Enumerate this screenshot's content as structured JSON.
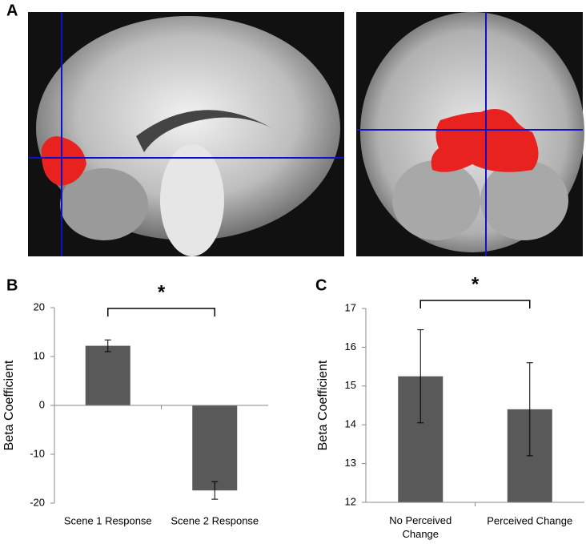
{
  "panel_labels": [
    "A",
    "B",
    "C"
  ],
  "chart_data": [
    {
      "type": "bar",
      "y_label": "Beta Coefficient",
      "annotation": "*",
      "categories": [
        "Scene 1 Response",
        "Scene 2 Response"
      ],
      "values": [
        12.2,
        -17.4
      ],
      "errors": [
        1.2,
        1.8
      ],
      "color": "#595959",
      "ylim": [
        -20,
        20
      ],
      "yticks": [
        -20,
        -10,
        0,
        10,
        20
      ]
    },
    {
      "type": "bar",
      "y_label": "Beta Coefficient",
      "annotation": "*",
      "categories": [
        "No Perceived Change",
        "Perceived Change"
      ],
      "values": [
        15.25,
        14.4
      ],
      "errors": [
        1.2,
        1.2
      ],
      "color": "#595959",
      "ylim": [
        12,
        17
      ],
      "yticks": [
        12,
        13,
        14,
        15,
        16,
        17
      ]
    }
  ]
}
